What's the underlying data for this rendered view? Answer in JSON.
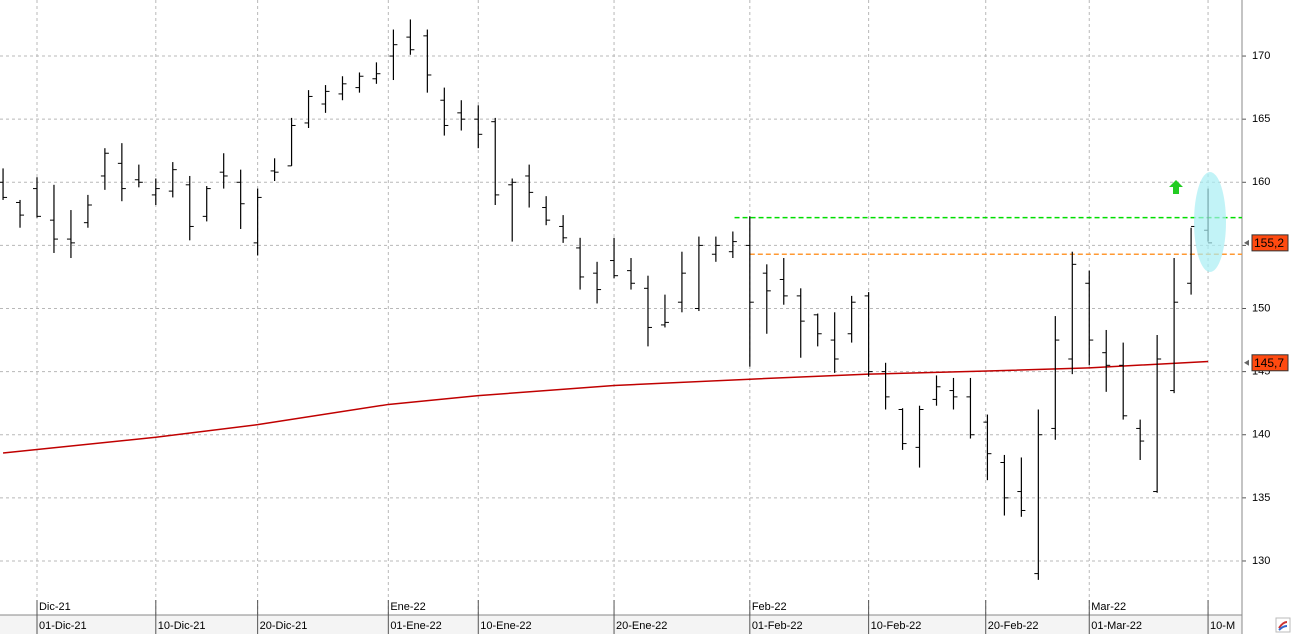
{
  "chart_data": {
    "type": "ohlc",
    "xlim": [
      -0.18,
      73.0
    ],
    "ylim": [
      125.72,
      174.44
    ],
    "yticks": [
      130,
      135,
      140,
      145,
      150,
      155,
      160,
      165,
      170
    ],
    "grid": true,
    "color": "#000000",
    "xticks": [
      {
        "value": 2,
        "label": "01-Dic-21"
      },
      {
        "value": 9,
        "label": "10-Dic-21"
      },
      {
        "value": 15,
        "label": "20-Dic-21"
      },
      {
        "value": 22.7,
        "label": "01-Ene-22"
      },
      {
        "value": 28,
        "label": "10-Ene-22"
      },
      {
        "value": 36,
        "label": "20-Ene-22"
      },
      {
        "value": 44,
        "label": "01-Feb-22"
      },
      {
        "value": 51,
        "label": "10-Feb-22"
      },
      {
        "value": 57.9,
        "label": "20-Feb-22"
      },
      {
        "value": 64,
        "label": "01-Mar-22"
      },
      {
        "value": 71,
        "label": "10-M"
      }
    ],
    "months": [
      {
        "value": 2,
        "label": "Dic-21"
      },
      {
        "value": 22.7,
        "label": "Ene-22"
      },
      {
        "value": 44,
        "label": "Feb-22"
      },
      {
        "value": 64,
        "label": "Mar-22"
      }
    ],
    "x": [
      0,
      1,
      2,
      3,
      4,
      5,
      6,
      7,
      8,
      9,
      10,
      11,
      12,
      13,
      14,
      15,
      16,
      17,
      18,
      19,
      20,
      21,
      22,
      23,
      24,
      25,
      26,
      27,
      28,
      29,
      30,
      31,
      32,
      33,
      34,
      35,
      36,
      37,
      38,
      39,
      40,
      41,
      42,
      43,
      44,
      45,
      46,
      47,
      48,
      49,
      50,
      51,
      52,
      53,
      54,
      55,
      56,
      57,
      58,
      59,
      60,
      61,
      62,
      63,
      64,
      65,
      66,
      67,
      68,
      69,
      70,
      71
    ],
    "open": [
      160,
      158.4,
      159.5,
      157,
      155.5,
      156.8,
      160.5,
      161.5,
      160.2,
      159,
      159.3,
      159.8,
      157.3,
      160.8,
      160,
      155.2,
      160.9,
      161.3,
      164.7,
      166.2,
      167,
      167.5,
      168.2,
      170,
      171.5,
      171.6,
      166.5,
      165.5,
      165,
      164.8,
      159.8,
      160.5,
      158,
      156.5,
      154.8,
      152.8,
      153.8,
      153,
      151.6,
      148.7,
      150.5,
      150,
      154.3,
      154.5,
      155,
      152.8,
      152.3,
      151,
      149.5,
      147.5,
      148,
      151,
      145,
      142,
      139,
      142.8,
      143.5,
      143,
      141,
      137.8,
      135.5,
      129,
      140.5,
      146,
      152,
      146.5,
      145.5,
      140.5,
      135.5,
      143.5,
      152,
      156.2
    ],
    "high": [
      161.1,
      158.6,
      160.4,
      159.8,
      157.8,
      159,
      162.7,
      163.1,
      161.4,
      160.3,
      161.6,
      160.5,
      159.7,
      162.3,
      161,
      159.5,
      161.9,
      165.1,
      167.3,
      167.7,
      168.4,
      168.7,
      169.5,
      172.1,
      172.9,
      172.1,
      167.5,
      166.5,
      166.1,
      165.1,
      160.3,
      161.4,
      158.9,
      157.4,
      155.6,
      153.7,
      155.6,
      154,
      152.6,
      151.1,
      154.5,
      155.7,
      155.7,
      156.1,
      157.3,
      153.5,
      154,
      151.6,
      149.6,
      149.7,
      151,
      151.3,
      145.7,
      142.1,
      142.3,
      144.7,
      144.5,
      144.5,
      141.6,
      138.4,
      138.2,
      142,
      149.4,
      154.5,
      153,
      148.3,
      147.3,
      141.2,
      147.9,
      154,
      156.4,
      159.5
    ],
    "low": [
      158.6,
      156.4,
      157.2,
      154.4,
      154,
      156.4,
      159.4,
      158.5,
      159.6,
      158.2,
      158.8,
      155.4,
      156.9,
      159.5,
      156.3,
      154.2,
      160.1,
      161.3,
      164.3,
      165.5,
      166.5,
      167.1,
      167.8,
      168.1,
      170.1,
      167.1,
      163.7,
      164.1,
      162.7,
      158.2,
      155.3,
      158,
      156.6,
      155.2,
      151.5,
      150.4,
      152.4,
      151.5,
      147,
      148.5,
      149.7,
      149.8,
      153.7,
      154,
      145.4,
      148,
      150.3,
      146.1,
      147,
      144.9,
      147.3,
      144.6,
      142,
      138.8,
      137.4,
      142.3,
      142,
      139.7,
      136.4,
      133.6,
      133.5,
      128.5,
      139.6,
      144.8,
      145.5,
      143.4,
      141.2,
      138,
      135.4,
      143.3,
      151.1,
      155.3
    ],
    "close": [
      158.8,
      157.4,
      157.3,
      155.5,
      155.2,
      158.2,
      162.3,
      159.5,
      160,
      159.5,
      161,
      156.5,
      159.5,
      160.5,
      158.3,
      158.8,
      160.8,
      164.5,
      166.8,
      167.2,
      167.8,
      168.4,
      168.6,
      170.9,
      170.5,
      168.5,
      164.5,
      165,
      163.8,
      159,
      160,
      159.2,
      157,
      155.6,
      152.5,
      151.5,
      152.6,
      152,
      148.5,
      148.9,
      152.8,
      155,
      155,
      155.3,
      150.5,
      151.4,
      151,
      149,
      148,
      146,
      150.5,
      145,
      143,
      139.3,
      142,
      143.8,
      143,
      140,
      138.5,
      135,
      134,
      140,
      147.5,
      153.5,
      147.5,
      145.5,
      141.5,
      139.5,
      146,
      150.5,
      156.5,
      155.2
    ],
    "ma": {
      "color": "#c00000",
      "x": [
        0,
        9,
        15,
        22.7,
        28,
        36,
        44,
        51,
        58,
        64,
        71
      ],
      "values": [
        138.55,
        139.8,
        140.8,
        142.4,
        143.1,
        143.9,
        144.4,
        144.8,
        145.05,
        145.3,
        145.8
      ]
    },
    "levels": [
      {
        "value": 157.2,
        "start": 43.1,
        "color": "#00dd00"
      },
      {
        "value": 154.3,
        "start": 44,
        "color": "#ff9933"
      }
    ],
    "price_labels": [
      {
        "value": 155.2,
        "label": "155,2"
      },
      {
        "value": 145.7,
        "label": "145,7"
      }
    ]
  }
}
